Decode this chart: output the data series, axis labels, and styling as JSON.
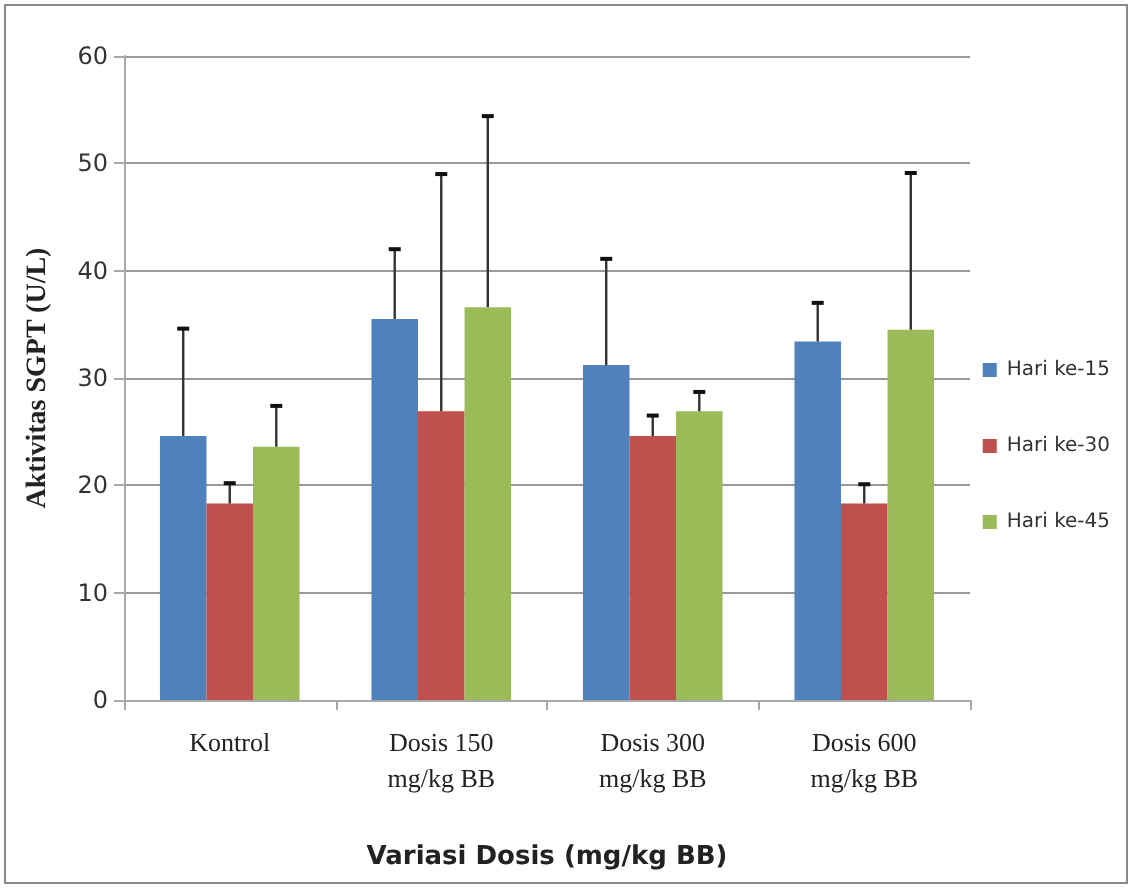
{
  "chart_data": {
    "type": "bar",
    "xlabel": "Variasi Dosis (mg/kg BB)",
    "ylabel": "Aktivitas SGPT (U/L)",
    "categories": [
      "Kontrol",
      "Dosis 150\nmg/kg BB",
      "Dosis 300\nmg/kg BB",
      "Dosis 600\nmg/kg BB"
    ],
    "series": [
      {
        "name": "Hari ke-15",
        "color": "#4f81bd",
        "values": [
          24.6,
          35.5,
          31.2,
          33.4
        ],
        "errors": [
          [
            24.6,
            34.6
          ],
          [
            35.5,
            42
          ],
          [
            31.2,
            41.1
          ],
          [
            33.4,
            37
          ]
        ]
      },
      {
        "name": "Hari ke-30",
        "color": "#c0504d",
        "values": [
          18.3,
          26.9,
          24.6,
          18.3
        ],
        "errors": [
          [
            18.3,
            20.2
          ],
          [
            26.9,
            49
          ],
          [
            24.6,
            26.5
          ],
          [
            18.3,
            20.1
          ]
        ]
      },
      {
        "name": "Hari ke-45",
        "color": "#9bbb59",
        "values": [
          23.6,
          36.6,
          26.9,
          34.5
        ],
        "errors": [
          [
            23.6,
            27.4
          ],
          [
            36.6,
            54.4
          ],
          [
            26.9,
            28.7
          ],
          [
            34.5,
            49.1
          ]
        ]
      }
    ],
    "ylim": [
      0,
      60
    ],
    "yticks": [
      0,
      10,
      20,
      30,
      40,
      50,
      60
    ],
    "grid": "y",
    "legend": "right"
  }
}
